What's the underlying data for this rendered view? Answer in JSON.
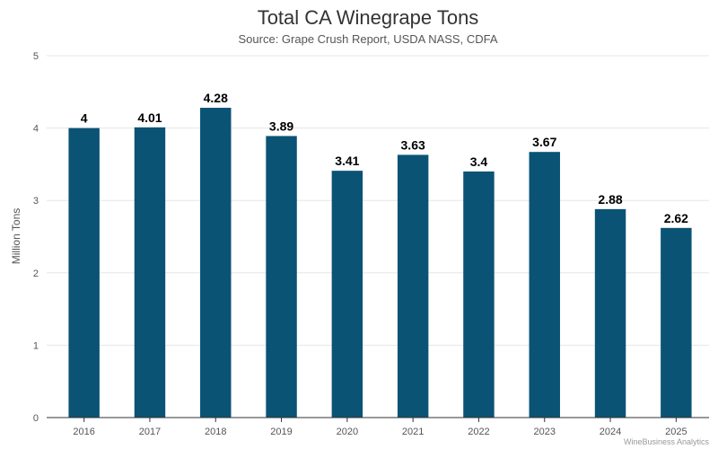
{
  "chart_data": {
    "type": "bar",
    "title": "Total CA Winegrape Tons",
    "subtitle": "Source: Grape Crush Report, USDA NASS, CDFA",
    "xlabel": "",
    "ylabel": "Million Tons",
    "categories": [
      "2016",
      "2017",
      "2018",
      "2019",
      "2020",
      "2021",
      "2022",
      "2023",
      "2024",
      "2025"
    ],
    "values": [
      4,
      4.01,
      4.28,
      3.89,
      3.41,
      3.63,
      3.4,
      3.67,
      2.88,
      2.62
    ],
    "ylim": [
      0,
      5
    ],
    "yticks": [
      0,
      1,
      2,
      3,
      4,
      5
    ],
    "grid": true,
    "legend": "none",
    "bar_color": "#0b5375",
    "credit": "WineBusiness Analytics"
  }
}
